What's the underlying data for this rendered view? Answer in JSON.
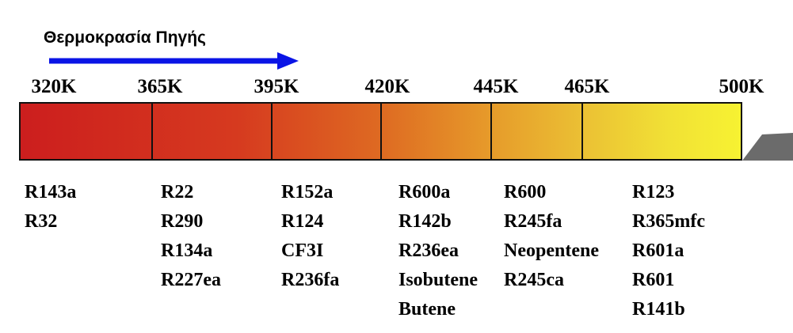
{
  "title": "Θερμοκρασία Πηγής",
  "temperature_ticks": [
    "320K",
    "365K",
    "395K",
    "420K",
    "445K",
    "465K",
    "500K"
  ],
  "columns": [
    [
      "R143a",
      "R32"
    ],
    [
      "R22",
      "R290",
      "R134a",
      "R227ea"
    ],
    [
      "R152a",
      "R124",
      "CF3I",
      "R236fa"
    ],
    [
      "R600a",
      "R142b",
      "R236ea",
      "Isobutene",
      "Butene"
    ],
    [
      "R600",
      "R245fa",
      "Neopentene",
      "R245ca"
    ],
    [
      "R123",
      "R365mfc",
      "R601a",
      "R601",
      "R141b"
    ]
  ],
  "colors": {
    "arrow": "#0a14e6",
    "bar_start": "#cc1e1e",
    "bar_end": "#f7f232",
    "shadow": "#6b6b6b"
  }
}
